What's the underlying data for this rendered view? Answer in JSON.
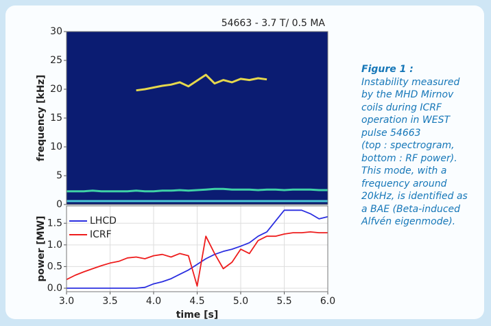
{
  "chart_data": [
    {
      "type": "spectrogram",
      "title": "54663 - 3.7 T/ 0.5 MA",
      "ylabel": "frequency [kHz]",
      "x": [
        3.0,
        3.1,
        3.2,
        3.3,
        3.4,
        3.5,
        3.6,
        3.7,
        3.8,
        3.9,
        4.0,
        4.1,
        4.2,
        4.3,
        4.4,
        4.5,
        4.6,
        4.7,
        4.8,
        4.9,
        5.0,
        5.1,
        5.2,
        5.3,
        5.4,
        5.5,
        5.6,
        5.7,
        5.8,
        5.9,
        6.0
      ],
      "series": [
        {
          "color": "#e6d84c",
          "values": [
            null,
            null,
            null,
            null,
            null,
            null,
            null,
            null,
            19.8,
            20,
            20.3,
            20.6,
            20.8,
            21.2,
            20.5,
            21.5,
            22.5,
            21,
            21.6,
            21.2,
            21.8,
            21.6,
            21.9,
            21.7,
            null,
            null,
            null,
            null,
            null,
            null,
            null
          ]
        },
        {
          "color": "#3fd1a6",
          "values": [
            2.3,
            2.3,
            2.3,
            2.4,
            2.3,
            2.3,
            2.3,
            2.3,
            2.4,
            2.3,
            2.3,
            2.4,
            2.4,
            2.5,
            2.4,
            2.5,
            2.6,
            2.7,
            2.7,
            2.6,
            2.6,
            2.6,
            2.5,
            2.6,
            2.6,
            2.5,
            2.6,
            2.6,
            2.6,
            2.5,
            2.5
          ]
        },
        {
          "color": "#4cc8d6",
          "values": [
            0.6,
            0.6,
            0.6,
            0.6,
            0.6,
            0.6,
            0.6,
            0.6,
            0.6,
            0.6,
            0.6,
            0.6,
            0.6,
            0.6,
            0.6,
            0.6,
            0.6,
            0.6,
            0.6,
            0.6,
            0.6,
            0.6,
            0.6,
            0.6,
            0.6,
            0.6,
            0.6,
            0.6,
            0.6,
            0.6,
            0.6
          ]
        }
      ],
      "xlim": [
        3.0,
        6.0
      ],
      "ylim": [
        0,
        30
      ],
      "yticks": [
        0,
        5,
        10,
        15,
        20,
        25,
        30
      ],
      "background": "#0b1c72"
    },
    {
      "type": "line",
      "xlabel": "time [s]",
      "ylabel": "power [MW]",
      "x": [
        3.0,
        3.1,
        3.2,
        3.3,
        3.4,
        3.5,
        3.6,
        3.7,
        3.8,
        3.9,
        4.0,
        4.1,
        4.2,
        4.3,
        4.4,
        4.5,
        4.6,
        4.7,
        4.8,
        4.9,
        5.0,
        5.1,
        5.2,
        5.3,
        5.4,
        5.5,
        5.6,
        5.7,
        5.8,
        5.9,
        6.0
      ],
      "series": [
        {
          "name": "LHCD",
          "color": "#2a2ee0",
          "values": [
            0,
            0,
            0,
            0,
            0,
            0,
            0,
            0,
            0,
            0.02,
            0.1,
            0.15,
            0.22,
            0.32,
            0.42,
            0.55,
            0.68,
            0.78,
            0.85,
            0.9,
            0.97,
            1.05,
            1.2,
            1.3,
            1.55,
            1.8,
            1.8,
            1.8,
            1.72,
            1.6,
            1.65
          ]
        },
        {
          "name": "ICRF",
          "color": "#ee1c1c",
          "values": [
            0.2,
            0.3,
            0.38,
            0.45,
            0.52,
            0.58,
            0.62,
            0.7,
            0.72,
            0.68,
            0.75,
            0.78,
            0.72,
            0.8,
            0.75,
            0.05,
            1.2,
            0.8,
            0.45,
            0.6,
            0.9,
            0.8,
            1.1,
            1.2,
            1.2,
            1.25,
            1.28,
            1.28,
            1.3,
            1.28,
            1.28
          ]
        }
      ],
      "xlim": [
        3.0,
        6.0
      ],
      "ylim": [
        -0.08,
        1.9
      ],
      "xticks": [
        {
          "value": 3.0,
          "label": "3.0"
        },
        3.5,
        {
          "value": 4.0,
          "label": "4.0"
        },
        4.5,
        {
          "value": 5.0,
          "label": "5.0"
        },
        5.5,
        {
          "value": 6.0,
          "label": "6.0"
        }
      ],
      "yticks": [
        {
          "value": 0,
          "label": "0.0"
        },
        0.5,
        {
          "value": 1.0,
          "label": "1.0"
        },
        1.5
      ],
      "grid": true,
      "legend": "upper-left"
    }
  ],
  "caption": {
    "title": "Figure 1 :",
    "lines": [
      "Instability measured",
      "by the MHD Mirnov",
      "coils during ICRF",
      "operation in WEST",
      "pulse 54663",
      "(top : spectrogram,",
      "bottom : RF power).",
      "This mode, with a",
      "frequency around",
      "20kHz, is identified as",
      "a BAE (Beta-induced",
      "Alfvén eigenmode)."
    ]
  }
}
